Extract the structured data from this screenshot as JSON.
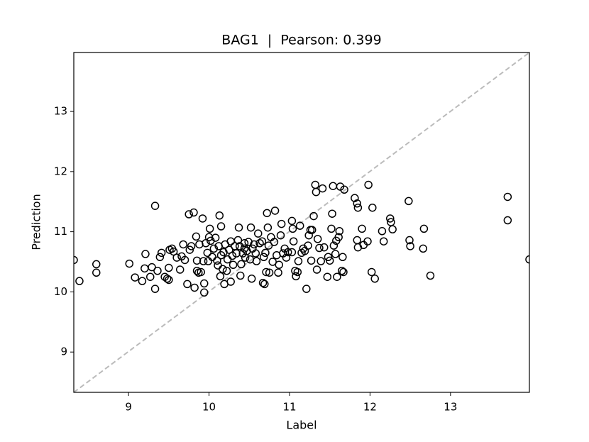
{
  "chart_data": {
    "type": "scatter",
    "title": "BAG1  |  Pearson: 0.399",
    "x_label": "Label",
    "y_label": "Prediction",
    "xlim": [
      8.32,
      13.98
    ],
    "ylim": [
      8.33,
      13.98
    ],
    "xticks": [
      9,
      10,
      11,
      12,
      13
    ],
    "yticks": [
      9,
      10,
      11,
      12,
      13
    ],
    "marker_color": "#000000",
    "grid": false,
    "reference_line": {
      "x": [
        8.32,
        13.98
      ],
      "values": [
        8.33,
        13.98
      ],
      "color": "#bbbbbb"
    },
    "x": [
      8.32,
      8.39,
      8.6,
      8.6,
      9.01,
      9.08,
      9.17,
      9.2,
      9.21,
      9.27,
      9.29,
      9.33,
      9.33,
      9.36,
      9.39,
      9.41,
      9.45,
      9.48,
      9.5,
      9.5,
      9.51,
      9.54,
      9.56,
      9.6,
      9.64,
      9.66,
      9.68,
      9.7,
      9.73,
      9.75,
      9.76,
      9.78,
      9.81,
      9.82,
      9.84,
      9.85,
      9.85,
      9.87,
      9.88,
      9.9,
      9.92,
      9.93,
      9.94,
      9.94,
      9.96,
      9.98,
      9.99,
      10.0,
      10.01,
      10.02,
      10.04,
      10.06,
      10.08,
      10.1,
      10.11,
      10.12,
      10.13,
      10.14,
      10.15,
      10.15,
      10.17,
      10.18,
      10.19,
      10.2,
      10.22,
      10.23,
      10.25,
      10.27,
      10.27,
      10.29,
      10.3,
      10.32,
      10.34,
      10.36,
      10.37,
      10.38,
      10.39,
      10.4,
      10.42,
      10.44,
      10.44,
      10.45,
      10.47,
      10.49,
      10.51,
      10.52,
      10.53,
      10.54,
      10.56,
      10.58,
      10.59,
      10.61,
      10.63,
      10.66,
      10.67,
      10.69,
      10.68,
      10.7,
      10.71,
      10.72,
      10.73,
      10.74,
      10.75,
      10.77,
      10.79,
      10.81,
      10.82,
      10.84,
      10.86,
      10.87,
      10.89,
      10.9,
      10.92,
      10.94,
      10.96,
      10.98,
      11.03,
      11.03,
      11.04,
      11.05,
      11.07,
      11.08,
      11.1,
      11.11,
      11.13,
      11.15,
      11.17,
      11.19,
      11.21,
      11.23,
      11.24,
      11.26,
      11.27,
      11.28,
      11.3,
      11.32,
      11.33,
      11.34,
      11.35,
      11.37,
      11.39,
      11.41,
      11.43,
      11.47,
      11.48,
      11.5,
      11.52,
      11.53,
      11.54,
      11.55,
      11.57,
      11.58,
      11.59,
      11.61,
      11.62,
      11.63,
      11.65,
      11.66,
      11.67,
      11.68,
      11.81,
      11.84,
      11.85,
      11.84,
      11.85,
      11.9,
      11.92,
      11.97,
      11.98,
      12.02,
      12.03,
      12.06,
      12.15,
      12.17,
      12.25,
      12.26,
      12.28,
      12.48,
      12.49,
      12.5,
      12.66,
      12.67,
      12.75,
      13.71,
      13.71,
      13.98
    ],
    "values": [
      10.53,
      10.18,
      10.46,
      10.32,
      10.47,
      10.24,
      10.18,
      10.39,
      10.63,
      10.25,
      10.41,
      11.43,
      10.05,
      10.35,
      10.58,
      10.65,
      10.25,
      10.22,
      10.2,
      10.4,
      10.7,
      10.72,
      10.67,
      10.57,
      10.37,
      10.59,
      10.79,
      10.53,
      10.13,
      11.29,
      10.7,
      10.76,
      11.32,
      10.07,
      10.92,
      10.52,
      10.35,
      10.32,
      10.79,
      10.33,
      11.22,
      10.51,
      10.14,
      9.99,
      10.81,
      10.65,
      10.51,
      10.91,
      11.05,
      10.85,
      10.58,
      10.72,
      10.9,
      10.52,
      10.44,
      10.76,
      11.27,
      10.26,
      11.09,
      10.61,
      10.38,
      10.66,
      10.13,
      10.79,
      10.35,
      10.54,
      10.7,
      10.84,
      10.17,
      10.6,
      10.45,
      10.76,
      10.64,
      10.86,
      11.07,
      10.76,
      10.27,
      10.46,
      10.64,
      10.72,
      10.81,
      10.57,
      10.68,
      10.83,
      10.54,
      11.07,
      10.22,
      10.72,
      10.79,
      10.64,
      10.51,
      10.97,
      10.81,
      10.84,
      10.15,
      10.13,
      10.58,
      10.65,
      10.33,
      11.31,
      11.07,
      10.77,
      10.32,
      10.91,
      10.5,
      10.83,
      11.35,
      10.61,
      10.32,
      10.45,
      10.94,
      11.13,
      10.64,
      10.72,
      10.57,
      10.66,
      10.66,
      11.18,
      11.05,
      10.84,
      10.35,
      10.26,
      10.33,
      10.51,
      11.1,
      10.65,
      10.72,
      10.68,
      10.05,
      10.77,
      10.94,
      11.03,
      10.52,
      11.03,
      11.26,
      11.78,
      11.66,
      10.37,
      10.88,
      10.73,
      10.51,
      11.72,
      10.74,
      10.25,
      10.58,
      10.52,
      11.05,
      11.3,
      11.76,
      10.77,
      10.63,
      10.85,
      10.25,
      10.91,
      11.01,
      11.75,
      10.35,
      10.58,
      10.33,
      11.7,
      11.56,
      11.47,
      11.4,
      10.86,
      10.74,
      11.05,
      10.78,
      10.84,
      11.78,
      10.33,
      11.4,
      10.22,
      11.01,
      10.84,
      11.22,
      11.16,
      11.04,
      11.51,
      10.86,
      10.76,
      10.72,
      11.05,
      10.27,
      11.58,
      11.19,
      10.54
    ]
  }
}
